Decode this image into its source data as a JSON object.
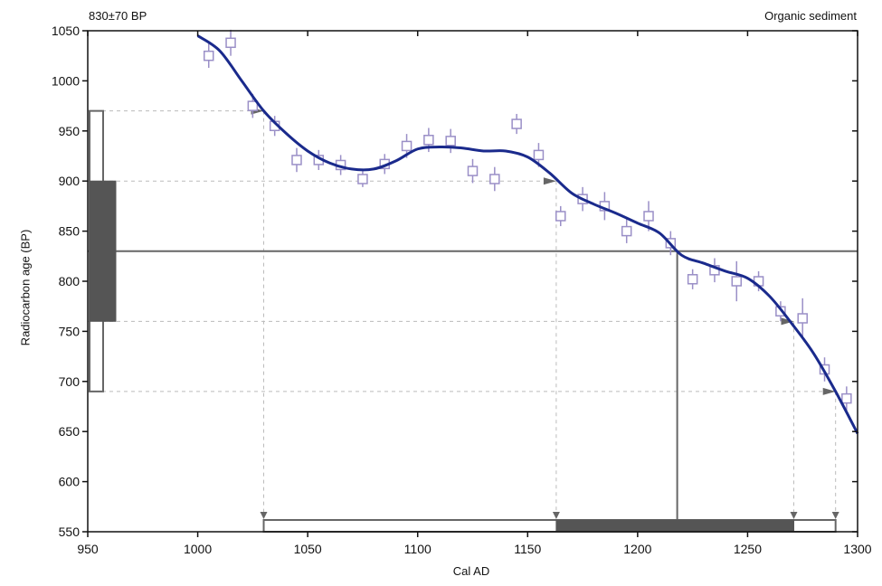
{
  "chart_data": {
    "type": "line",
    "title_left": "830±70 BP",
    "title_right": "Organic sediment",
    "xlabel": "Cal AD",
    "ylabel": "Radiocarbon age (BP)",
    "xlim": [
      950,
      1300
    ],
    "ylim": [
      550,
      1050
    ],
    "xticks": [
      950,
      1000,
      1050,
      1100,
      1150,
      1200,
      1250,
      1300
    ],
    "yticks": [
      550,
      600,
      650,
      700,
      750,
      800,
      850,
      900,
      950,
      1000,
      1050
    ],
    "colors": {
      "curve": "#1a2a8c",
      "points": "#9a8fc7",
      "lines": "#666666",
      "fill": "#555555"
    },
    "calibration_curve": [
      [
        1000,
        1045
      ],
      [
        1010,
        1030
      ],
      [
        1020,
        1000
      ],
      [
        1030,
        970
      ],
      [
        1040,
        948
      ],
      [
        1050,
        930
      ],
      [
        1060,
        918
      ],
      [
        1070,
        912
      ],
      [
        1080,
        912
      ],
      [
        1090,
        920
      ],
      [
        1100,
        932
      ],
      [
        1110,
        934
      ],
      [
        1120,
        933
      ],
      [
        1130,
        930
      ],
      [
        1140,
        930
      ],
      [
        1150,
        924
      ],
      [
        1160,
        908
      ],
      [
        1170,
        888
      ],
      [
        1180,
        877
      ],
      [
        1190,
        868
      ],
      [
        1200,
        858
      ],
      [
        1210,
        848
      ],
      [
        1220,
        826
      ],
      [
        1230,
        818
      ],
      [
        1240,
        810
      ],
      [
        1250,
        803
      ],
      [
        1260,
        785
      ],
      [
        1270,
        758
      ],
      [
        1280,
        728
      ],
      [
        1290,
        690
      ],
      [
        1300,
        648
      ]
    ],
    "data_points": [
      {
        "x": 1005,
        "y": 1025,
        "err": 12
      },
      {
        "x": 1015,
        "y": 1038,
        "err": 13
      },
      {
        "x": 1025,
        "y": 975,
        "err": 12
      },
      {
        "x": 1035,
        "y": 955,
        "err": 10
      },
      {
        "x": 1045,
        "y": 921,
        "err": 12
      },
      {
        "x": 1055,
        "y": 921,
        "err": 10
      },
      {
        "x": 1065,
        "y": 916,
        "err": 10
      },
      {
        "x": 1075,
        "y": 902,
        "err": 8
      },
      {
        "x": 1085,
        "y": 917,
        "err": 10
      },
      {
        "x": 1095,
        "y": 935,
        "err": 12
      },
      {
        "x": 1105,
        "y": 941,
        "err": 12
      },
      {
        "x": 1115,
        "y": 940,
        "err": 12
      },
      {
        "x": 1125,
        "y": 910,
        "err": 12
      },
      {
        "x": 1135,
        "y": 902,
        "err": 12
      },
      {
        "x": 1145,
        "y": 957,
        "err": 10
      },
      {
        "x": 1155,
        "y": 926,
        "err": 12
      },
      {
        "x": 1165,
        "y": 865,
        "err": 10
      },
      {
        "x": 1175,
        "y": 882,
        "err": 12
      },
      {
        "x": 1185,
        "y": 875,
        "err": 14
      },
      {
        "x": 1195,
        "y": 850,
        "err": 12
      },
      {
        "x": 1205,
        "y": 865,
        "err": 15
      },
      {
        "x": 1215,
        "y": 838,
        "err": 12
      },
      {
        "x": 1225,
        "y": 802,
        "err": 10
      },
      {
        "x": 1235,
        "y": 811,
        "err": 12
      },
      {
        "x": 1245,
        "y": 800,
        "err": 20
      },
      {
        "x": 1255,
        "y": 800,
        "err": 10
      },
      {
        "x": 1265,
        "y": 770,
        "err": 10
      },
      {
        "x": 1275,
        "y": 763,
        "err": 20
      },
      {
        "x": 1285,
        "y": 712,
        "err": 12
      },
      {
        "x": 1295,
        "y": 683,
        "err": 12
      }
    ],
    "sample": {
      "age": 830,
      "error": 70,
      "sigma1": [
        760,
        900
      ],
      "sigma2": [
        690,
        970
      ],
      "cal_intercept": 1218
    },
    "cal_ranges": {
      "sigma2": [
        1030,
        1290
      ],
      "sigma1": [
        1163,
        1271
      ],
      "markers": [
        1030,
        1163,
        1271,
        1290
      ]
    },
    "side_markers": [
      {
        "x": 1030,
        "y": 970
      },
      {
        "x": 1163,
        "y": 900
      },
      {
        "x": 1271,
        "y": 760
      },
      {
        "x": 1290,
        "y": 690
      }
    ]
  }
}
